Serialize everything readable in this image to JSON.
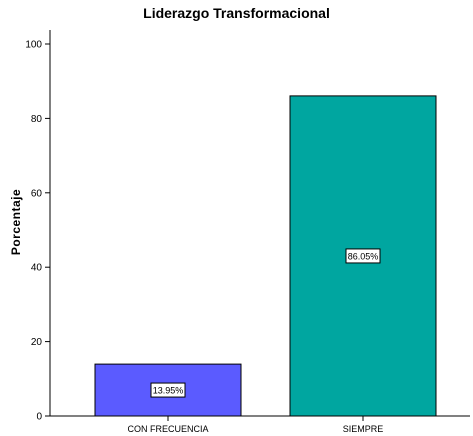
{
  "chart_data": {
    "type": "bar",
    "title": "Liderazgo Transformacional",
    "xlabel": "",
    "ylabel": "Porcentaje",
    "ylim": [
      0,
      100
    ],
    "yticks": [
      0,
      20,
      40,
      60,
      80,
      100
    ],
    "grid": false,
    "categories": [
      "CON FRECUENCIA",
      "SIEMPRE"
    ],
    "values": [
      13.95,
      86.05
    ],
    "data_labels": [
      "13.95%",
      "86.05%"
    ],
    "colors": [
      "#5b5bff",
      "#00a6a0"
    ]
  }
}
